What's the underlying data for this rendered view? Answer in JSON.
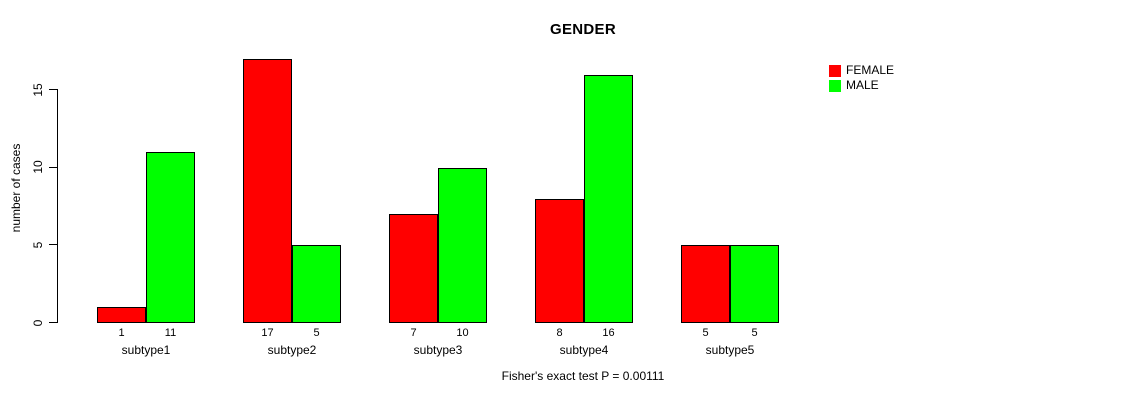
{
  "chart_data": {
    "type": "bar",
    "title": "GENDER",
    "ylabel": "number of cases",
    "xlabel": "",
    "categories": [
      "subtype1",
      "subtype2",
      "subtype3",
      "subtype4",
      "subtype5"
    ],
    "series": [
      {
        "name": "FEMALE",
        "color": "#FF0000",
        "values": [
          1,
          17,
          7,
          8,
          5
        ]
      },
      {
        "name": "MALE",
        "color": "#00FF00",
        "values": [
          11,
          5,
          10,
          16,
          5
        ]
      }
    ],
    "bar_value_labels_shown": true,
    "yticks": [
      0,
      5,
      10,
      15
    ],
    "ylim": [
      0,
      17
    ],
    "grid": false,
    "legend_position": "top-right",
    "caption": "Fisher's exact test P = 0.00111"
  }
}
